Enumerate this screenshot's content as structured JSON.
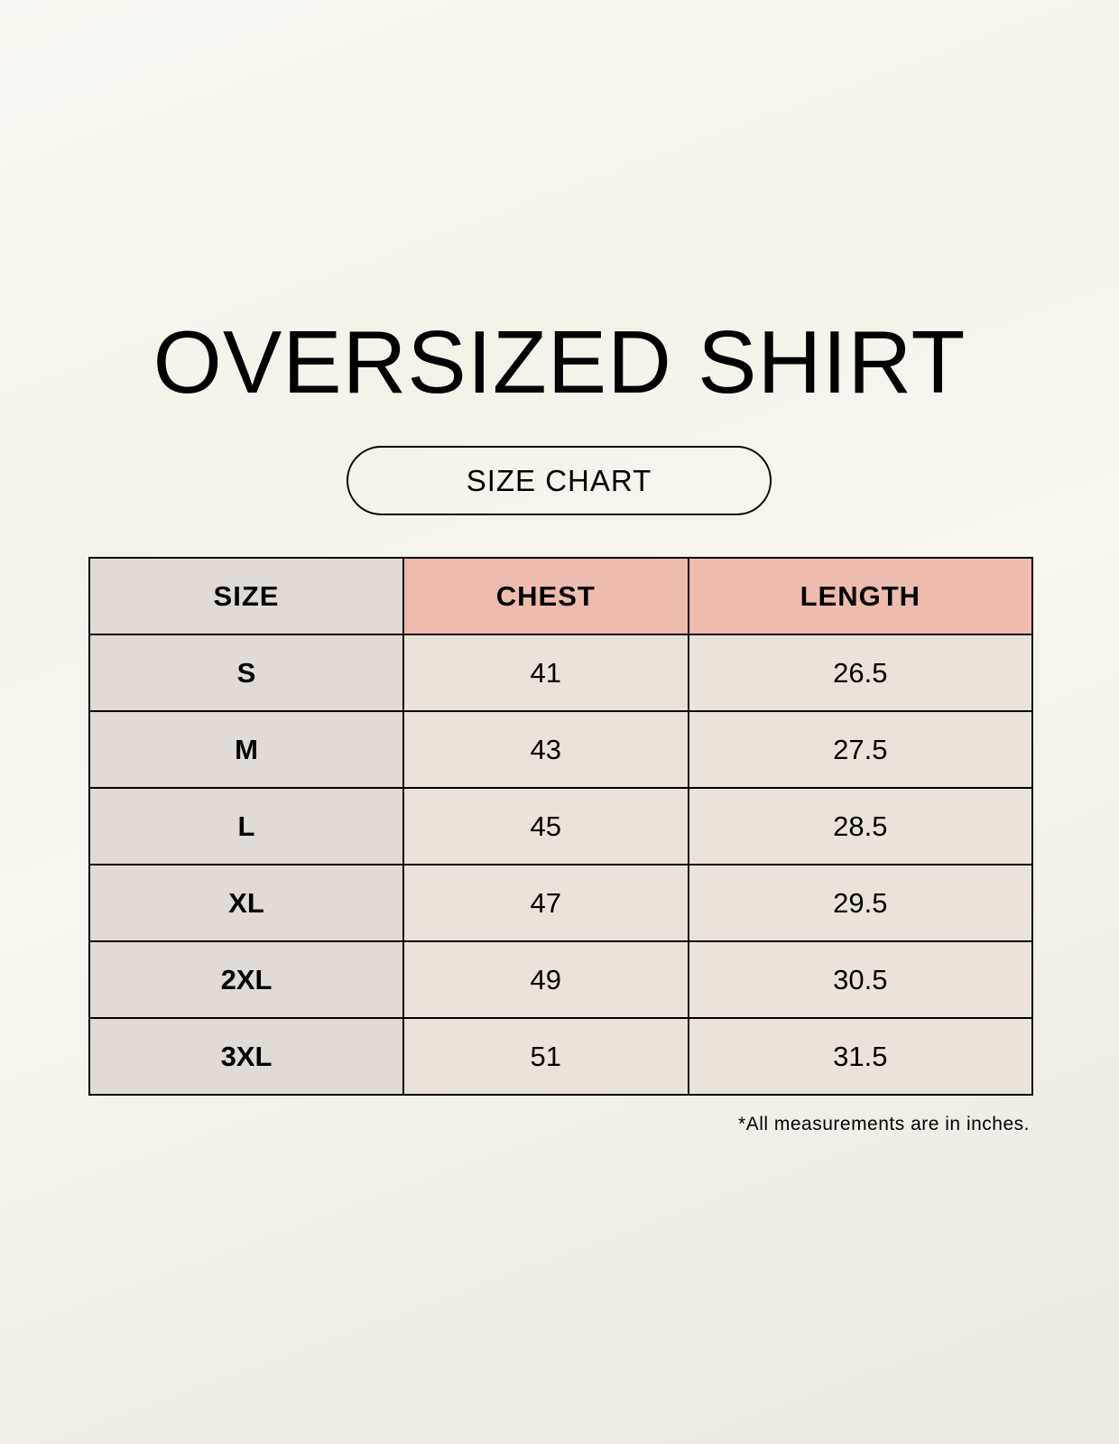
{
  "title": "OVERSIZED SHIRT",
  "subtitle": "SIZE CHART",
  "table": {
    "headers": [
      "SIZE",
      "CHEST",
      "LENGTH"
    ],
    "rows": [
      [
        "S",
        "41",
        "26.5"
      ],
      [
        "M",
        "43",
        "27.5"
      ],
      [
        "L",
        "45",
        "28.5"
      ],
      [
        "XL",
        "47",
        "29.5"
      ],
      [
        "2XL",
        "49",
        "30.5"
      ],
      [
        "3XL",
        "51",
        "31.5"
      ]
    ]
  },
  "footnote": "*All measurements are in inches.",
  "colors": {
    "size_column": "#e1dad5",
    "header_accent": "#eebcae",
    "cell": "#ebe3d9"
  }
}
